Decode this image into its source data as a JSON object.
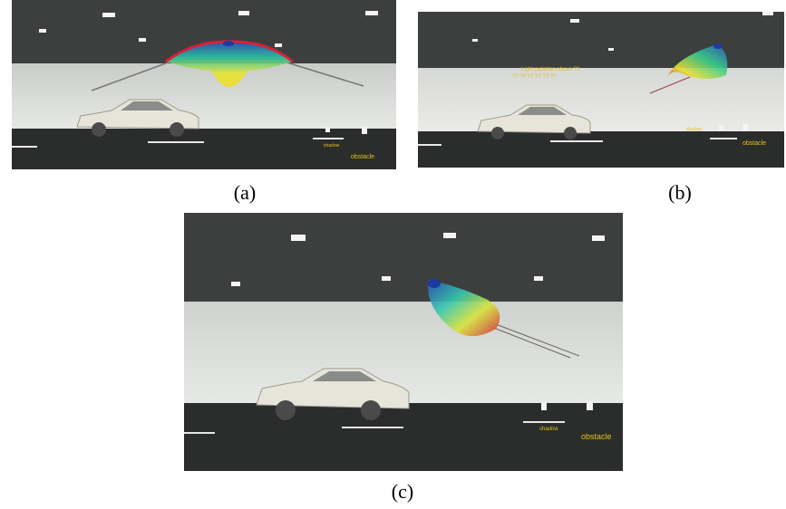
{
  "figure": {
    "panels": [
      {
        "id": "a",
        "caption": "(a)",
        "labels": {
          "shadow": "shadow",
          "obstacle": "obstacle"
        }
      },
      {
        "id": "b",
        "caption": "(b)",
        "labels": {
          "shadow": "shadow",
          "obstacle": "obstacle",
          "annotation_line1": "Light radiation above ??",
          "annotation_line2": "?? ?? ?? ?? ?? ??"
        }
      },
      {
        "id": "c",
        "caption": "(c)",
        "labels": {
          "shadow": "shadow",
          "obstacle": "obstacle"
        }
      }
    ],
    "colors": {
      "ceiling": "#3d3f3e",
      "wall": "#d9dcd8",
      "road": "#2b2c2c",
      "lane_marking": "#e8e8e8",
      "label": "#e4c21a",
      "car_body": "#e7e5d9"
    }
  }
}
